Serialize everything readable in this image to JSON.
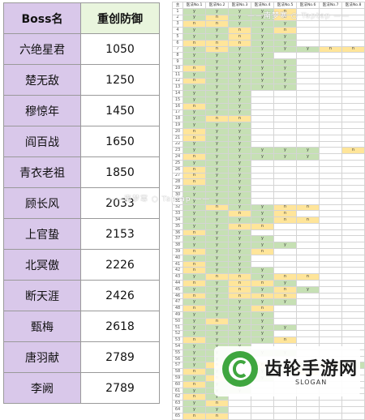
{
  "boss_table": {
    "header": {
      "name": "Boss名",
      "defense": "重创防御"
    },
    "rows": [
      {
        "name": "六绝星君",
        "defense": "1050"
      },
      {
        "name": "楚无敌",
        "defense": "1250"
      },
      {
        "name": "穆惊年",
        "defense": "1450"
      },
      {
        "name": "阎百战",
        "defense": "1650"
      },
      {
        "name": "青衣老祖",
        "defense": "1850"
      },
      {
        "name": "顾长风",
        "defense": "2033"
      },
      {
        "name": "上官蛰",
        "defense": "2153"
      },
      {
        "name": "北冥傲",
        "defense": "2226"
      },
      {
        "name": "断天涯",
        "defense": "2426"
      },
      {
        "name": "甄梅",
        "defense": "2618"
      },
      {
        "name": "唐羽献",
        "defense": "2789"
      },
      {
        "name": "李阙",
        "defense": "2789"
      }
    ]
  },
  "sheet": {
    "corner": "主",
    "columns": [
      "医法No.1",
      "医法No.2",
      "医法No.3",
      "医法No.4",
      "医法No.5",
      "医法No.6",
      "医法No.7",
      "医法No.8"
    ],
    "colors": {
      "y": "#c6e0b4",
      "n": "#ffe59a",
      "e": "#ffffff"
    },
    "rows": [
      [
        "y",
        "y",
        "y",
        "y",
        "n",
        "",
        "",
        ""
      ],
      [
        "y",
        "n",
        "y",
        "y",
        "n",
        "",
        "",
        ""
      ],
      [
        "n",
        "n",
        "y",
        "y",
        "y",
        "",
        "",
        ""
      ],
      [
        "y",
        "y",
        "n",
        "y",
        "n",
        "",
        "",
        ""
      ],
      [
        "y",
        "y",
        "n",
        "y",
        "y",
        "",
        "",
        ""
      ],
      [
        "n",
        "n",
        "n",
        "y",
        "y",
        "",
        "",
        ""
      ],
      [
        "y",
        "n",
        "y",
        "y",
        "y",
        "y",
        "n",
        "n"
      ],
      [
        "y",
        "y",
        "y",
        "y",
        "",
        "",
        "",
        ""
      ],
      [
        "y",
        "y",
        "y",
        "y",
        "y",
        "",
        "",
        ""
      ],
      [
        "n",
        "y",
        "y",
        "y",
        "y",
        "",
        "",
        ""
      ],
      [
        "y",
        "y",
        "y",
        "y",
        "y",
        "",
        "",
        ""
      ],
      [
        "n",
        "y",
        "y",
        "y",
        "y",
        "",
        "",
        ""
      ],
      [
        "y",
        "y",
        "y",
        "y",
        "y",
        "",
        "",
        ""
      ],
      [
        "y",
        "y",
        "y",
        "",
        "",
        "",
        "",
        ""
      ],
      [
        "y",
        "y",
        "y",
        "",
        "",
        "",
        "",
        ""
      ],
      [
        "n",
        "y",
        "y",
        "",
        "",
        "",
        "",
        ""
      ],
      [
        "y",
        "y",
        "y",
        "",
        "",
        "",
        "",
        ""
      ],
      [
        "y",
        "n",
        "n",
        "",
        "",
        "",
        "",
        ""
      ],
      [
        "y",
        "y",
        "y",
        "",
        "",
        "",
        "",
        ""
      ],
      [
        "n",
        "y",
        "y",
        "",
        "",
        "",
        "",
        ""
      ],
      [
        "n",
        "y",
        "y",
        "",
        "",
        "",
        "",
        ""
      ],
      [
        "y",
        "y",
        "y",
        "",
        "",
        "",
        "",
        ""
      ],
      [
        "y",
        "y",
        "y",
        "y",
        "y",
        "y",
        "",
        "n"
      ],
      [
        "n",
        "y",
        "y",
        "y",
        "y",
        "y",
        "",
        ""
      ],
      [
        "y",
        "y",
        "y",
        "",
        "",
        "",
        "",
        ""
      ],
      [
        "n",
        "y",
        "y",
        "",
        "",
        "",
        "",
        ""
      ],
      [
        "n",
        "y",
        "y",
        "",
        "",
        "",
        "",
        ""
      ],
      [
        "n",
        "y",
        "y",
        "",
        "",
        "",
        "",
        ""
      ],
      [
        "y",
        "y",
        "y",
        "",
        "",
        "",
        "",
        ""
      ],
      [
        "y",
        "y",
        "y",
        "",
        "",
        "",
        "",
        ""
      ],
      [
        "y",
        "y",
        "y",
        "",
        "",
        "",
        "",
        ""
      ],
      [
        "y",
        "n",
        "y",
        "y",
        "n",
        "n",
        "",
        ""
      ],
      [
        "y",
        "y",
        "n",
        "y",
        "n",
        "",
        "",
        ""
      ],
      [
        "y",
        "y",
        "y",
        "y",
        "n",
        "n",
        "",
        ""
      ],
      [
        "y",
        "y",
        "n",
        "n",
        "",
        "",
        "",
        ""
      ],
      [
        "n",
        "y",
        "y",
        "",
        "",
        "",
        "",
        ""
      ],
      [
        "y",
        "y",
        "y",
        "y",
        "",
        "",
        "",
        ""
      ],
      [
        "y",
        "y",
        "y",
        "y",
        "y",
        "",
        "",
        ""
      ],
      [
        "n",
        "y",
        "y",
        "n",
        "",
        "",
        "",
        ""
      ],
      [
        "y",
        "y",
        "y",
        "",
        "",
        "",
        "",
        ""
      ],
      [
        "n",
        "y",
        "y",
        "",
        "",
        "",
        "",
        ""
      ],
      [
        "n",
        "y",
        "y",
        "y",
        "",
        "",
        "",
        ""
      ],
      [
        "y",
        "n",
        "n",
        "y",
        "n",
        "n",
        "",
        ""
      ],
      [
        "n",
        "y",
        "n",
        "n",
        "y",
        "",
        "",
        ""
      ],
      [
        "y",
        "y",
        "n",
        "y",
        "n",
        "y",
        "",
        ""
      ],
      [
        "n",
        "y",
        "n",
        "n",
        "n",
        "",
        "",
        ""
      ],
      [
        "y",
        "y",
        "y",
        "y",
        "y",
        "",
        "",
        ""
      ],
      [
        "n",
        "y",
        "y",
        "n",
        "",
        "",
        "",
        ""
      ],
      [
        "y",
        "y",
        "y",
        "y",
        "",
        "",
        "",
        ""
      ],
      [
        "y",
        "n",
        "y",
        "y",
        "",
        "",
        "",
        ""
      ],
      [
        "y",
        "y",
        "y",
        "y",
        "y",
        "",
        "",
        ""
      ],
      [
        "y",
        "y",
        "y",
        "y",
        "",
        "",
        "",
        ""
      ],
      [
        "n",
        "y",
        "y",
        "y",
        "n",
        "",
        "",
        ""
      ],
      [
        "y",
        "y",
        "y",
        "",
        "",
        "",
        "",
        ""
      ],
      [
        "y",
        "y",
        "y",
        "y",
        "y",
        "",
        "",
        ""
      ],
      [
        "y",
        "y",
        "y",
        "",
        "",
        "",
        "",
        ""
      ],
      [
        "y",
        "n",
        "y",
        "n",
        "y",
        "y",
        "n",
        "y"
      ],
      [
        "n",
        "y",
        "y",
        "y",
        "y",
        "n",
        "",
        ""
      ],
      [
        "y",
        "n",
        "y",
        "y",
        "",
        "",
        "",
        ""
      ],
      [
        "n",
        "y",
        "y",
        "",
        "",
        "",
        "",
        ""
      ],
      [
        "y",
        "y",
        "y",
        "",
        "",
        "",
        "",
        ""
      ],
      [
        "n",
        "y",
        "",
        "",
        "",
        "",
        "",
        ""
      ],
      [
        "y",
        "n",
        "",
        "",
        "",
        "",
        "",
        ""
      ],
      [
        "y",
        "y",
        "",
        "",
        "",
        "",
        "",
        ""
      ],
      [
        "n",
        "n",
        "",
        "",
        "",
        "",
        "",
        ""
      ]
    ]
  },
  "watermark": {
    "top": "——南梦寒 ○ Taptap ——",
    "middle": "——南梦寒 ○ Taptap ——"
  },
  "logo": {
    "title": "齿轮手游网",
    "slogan": "SLOGAN",
    "brand_color": "#3fa63f"
  }
}
